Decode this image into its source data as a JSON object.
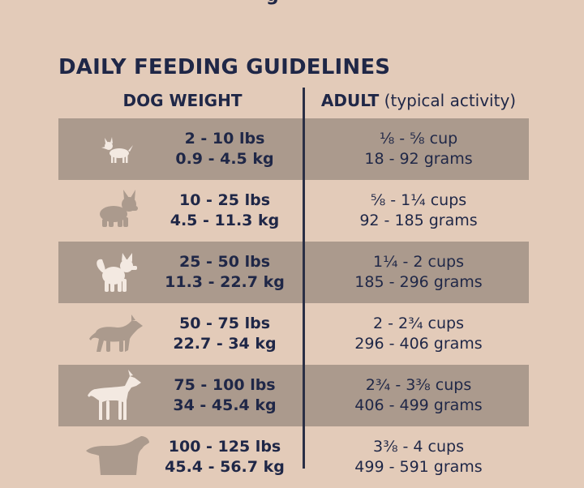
{
  "header_fragment": "g",
  "title": "DAILY FEEDING GUIDELINES",
  "columns": {
    "weight": "DOG WEIGHT",
    "adult_label": "ADULT",
    "adult_sub": "(typical activity)"
  },
  "rows": [
    {
      "dog_icon": "chihuahua-icon",
      "lbs": "2 - 10 lbs",
      "kg": "0.9 - 4.5 kg",
      "cups": "⅛ - ⅝ cup",
      "grams": "18 - 92 grams"
    },
    {
      "dog_icon": "french-bulldog-icon",
      "lbs": "10 - 25 lbs",
      "kg": "4.5 - 11.3 kg",
      "cups": "⅝ - 1¼ cups",
      "grams": "92 - 185 grams"
    },
    {
      "dog_icon": "spitz-icon",
      "lbs": "25 - 50 lbs",
      "kg": "11.3 - 22.7 kg",
      "cups": "1¼ - 2 cups",
      "grams": "185 - 296 grams"
    },
    {
      "dog_icon": "pit-bull-icon",
      "lbs": "50 - 75 lbs",
      "kg": "22.7 - 34 kg",
      "cups": "2 - 2¾ cups",
      "grams": "296 - 406 grams"
    },
    {
      "dog_icon": "great-dane-icon",
      "lbs": "75 - 100 lbs",
      "kg": "34 - 45.4 kg",
      "cups": "2¾ - 3⅜ cups",
      "grams": "406 - 499 grams"
    },
    {
      "dog_icon": "retriever-icon",
      "lbs": "100 - 125 lbs",
      "kg": "45.4 - 56.7 kg",
      "cups": "3⅜ - 4 cups",
      "grams": "499 - 591 grams"
    }
  ],
  "colors": {
    "background": "#e3cbb9",
    "row_shade": "#ab9a8d",
    "text": "#1f2747",
    "dog_silhouette": "#f3e9e1"
  }
}
